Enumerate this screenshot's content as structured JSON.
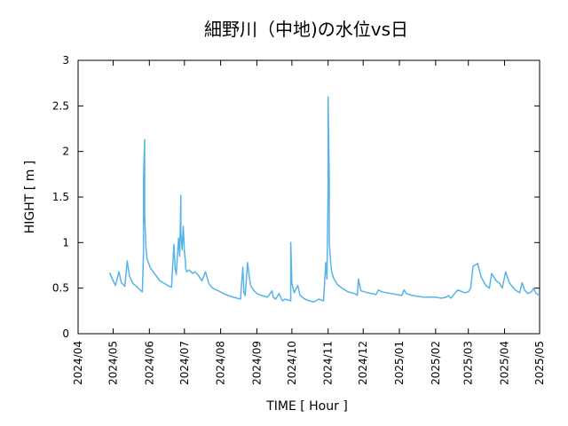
{
  "chart_data": {
    "type": "line",
    "title": "細野川（中地)の水位vs日",
    "xlabel": "TIME [ Hour ]",
    "ylabel": "HIGHT [ m ]",
    "ylim": [
      0,
      3
    ],
    "y_ticks": [
      "0",
      "0.5",
      "1",
      "1.5",
      "2",
      "2.5",
      "3"
    ],
    "x_ticks": [
      "2024/04",
      "2024/05",
      "2024/06",
      "2024/07",
      "2024/08",
      "2024/09",
      "2024/10",
      "2024/11",
      "2024/12",
      "2025/01",
      "2025/02",
      "2025/03",
      "2025/04",
      "2025/05"
    ],
    "grid": false,
    "series_color": "#56b4e9",
    "series": [
      {
        "x": [
          "2024-04-28",
          "2024-05-01",
          "2024-05-03",
          "2024-05-06",
          "2024-05-08",
          "2024-05-11",
          "2024-05-13",
          "2024-05-15",
          "2024-05-18",
          "2024-05-21",
          "2024-05-24",
          "2024-05-26",
          "2024-05-27",
          "2024-05-27",
          "2024-05-28",
          "2024-05-28",
          "2024-05-29",
          "2024-05-30",
          "2024-06-02",
          "2024-06-06",
          "2024-06-10",
          "2024-06-14",
          "2024-06-18",
          "2024-06-20",
          "2024-06-22",
          "2024-06-23",
          "2024-06-24",
          "2024-06-26",
          "2024-06-27",
          "2024-06-28",
          "2024-06-28",
          "2024-06-29",
          "2024-06-30",
          "2024-07-01",
          "2024-07-02",
          "2024-07-02",
          "2024-07-03",
          "2024-07-05",
          "2024-07-08",
          "2024-07-10",
          "2024-07-13",
          "2024-07-16",
          "2024-07-19",
          "2024-07-22",
          "2024-07-25",
          "2024-07-30",
          "2024-08-05",
          "2024-08-12",
          "2024-08-18",
          "2024-08-20",
          "2024-08-21",
          "2024-08-22",
          "2024-08-24",
          "2024-08-26",
          "2024-08-27",
          "2024-08-29",
          "2024-09-01",
          "2024-09-05",
          "2024-09-10",
          "2024-09-14",
          "2024-09-15",
          "2024-09-17",
          "2024-09-20",
          "2024-09-22",
          "2024-09-23",
          "2024-09-25",
          "2024-09-30",
          "2024-09-30",
          "2024-10-01",
          "2024-10-03",
          "2024-10-06",
          "2024-10-08",
          "2024-10-10",
          "2024-10-12",
          "2024-10-16",
          "2024-10-20",
          "2024-10-24",
          "2024-10-28",
          "2024-10-30",
          "2024-10-31",
          "2024-11-01",
          "2024-11-01",
          "2024-11-02",
          "2024-11-02",
          "2024-11-03",
          "2024-11-04",
          "2024-11-06",
          "2024-11-09",
          "2024-11-13",
          "2024-11-18",
          "2024-11-24",
          "2024-11-26",
          "2024-11-27",
          "2024-11-29",
          "2024-12-05",
          "2024-12-12",
          "2024-12-14",
          "2024-12-17",
          "2024-12-25",
          "2025-01-03",
          "2025-01-05",
          "2025-01-07",
          "2025-01-12",
          "2025-01-22",
          "2025-02-01",
          "2025-02-06",
          "2025-02-10",
          "2025-02-12",
          "2025-02-14",
          "2025-02-20",
          "2025-02-26",
          "2025-03-01",
          "2025-03-03",
          "2025-03-05",
          "2025-03-09",
          "2025-03-12",
          "2025-03-16",
          "2025-03-19",
          "2025-03-21",
          "2025-03-25",
          "2025-03-28",
          "2025-03-30",
          "2025-04-02",
          "2025-04-05",
          "2025-04-10",
          "2025-04-14",
          "2025-04-16",
          "2025-04-18",
          "2025-04-21",
          "2025-04-24",
          "2025-04-26",
          "2025-04-28",
          "2025-05-01"
        ],
        "y": [
          0.67,
          0.58,
          0.53,
          0.68,
          0.56,
          0.52,
          0.8,
          0.63,
          0.55,
          0.52,
          0.48,
          0.46,
          0.9,
          1.7,
          2.13,
          1.3,
          0.95,
          0.82,
          0.72,
          0.65,
          0.58,
          0.55,
          0.52,
          0.51,
          0.98,
          0.72,
          0.65,
          1.05,
          0.85,
          1.52,
          1.12,
          0.92,
          1.18,
          0.9,
          0.78,
          0.72,
          0.68,
          0.7,
          0.66,
          0.68,
          0.64,
          0.58,
          0.68,
          0.55,
          0.5,
          0.47,
          0.43,
          0.4,
          0.38,
          0.73,
          0.45,
          0.42,
          0.78,
          0.58,
          0.52,
          0.48,
          0.44,
          0.42,
          0.4,
          0.47,
          0.4,
          0.38,
          0.44,
          0.38,
          0.36,
          0.38,
          0.36,
          1.0,
          0.55,
          0.45,
          0.53,
          0.42,
          0.4,
          0.38,
          0.36,
          0.35,
          0.38,
          0.36,
          0.78,
          0.6,
          1.6,
          2.6,
          1.7,
          1.0,
          0.8,
          0.68,
          0.6,
          0.54,
          0.5,
          0.46,
          0.44,
          0.42,
          0.6,
          0.47,
          0.45,
          0.43,
          0.48,
          0.46,
          0.44,
          0.42,
          0.48,
          0.44,
          0.42,
          0.4,
          0.4,
          0.39,
          0.4,
          0.42,
          0.39,
          0.48,
          0.45,
          0.46,
          0.5,
          0.74,
          0.77,
          0.62,
          0.53,
          0.5,
          0.66,
          0.58,
          0.55,
          0.5,
          0.68,
          0.56,
          0.48,
          0.45,
          0.56,
          0.48,
          0.44,
          0.46,
          0.5,
          0.44,
          0.42
        ]
      }
    ]
  }
}
